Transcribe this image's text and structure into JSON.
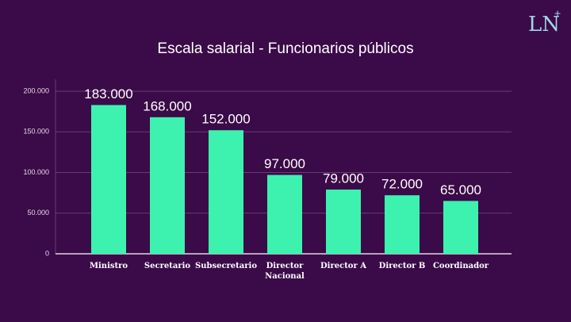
{
  "logo": {
    "text": "LN",
    "sup": "+"
  },
  "chart_data": {
    "type": "bar",
    "title": "Escala salarial - Funcionarios públicos",
    "categories": [
      "Ministro",
      "Secretario",
      "Subsecretario",
      "Director Nacional",
      "Director A",
      "Director B",
      "Coordinador"
    ],
    "values": [
      183000,
      168000,
      152000,
      97000,
      79000,
      72000,
      65000
    ],
    "value_labels": [
      "183.000",
      "168.000",
      "152.000",
      "97.000",
      "79.000",
      "72.000",
      "65.000"
    ],
    "color": "#3cf2ae",
    "ylim": [
      0,
      200000
    ],
    "yticks": [
      0,
      {
        "value": 50000,
        "label": "50.000"
      },
      {
        "value": 100000,
        "label": "100.000"
      },
      {
        "value": 150000,
        "label": "150.000"
      },
      {
        "value": 200000,
        "label": "200.000"
      }
    ],
    "grid": true
  }
}
